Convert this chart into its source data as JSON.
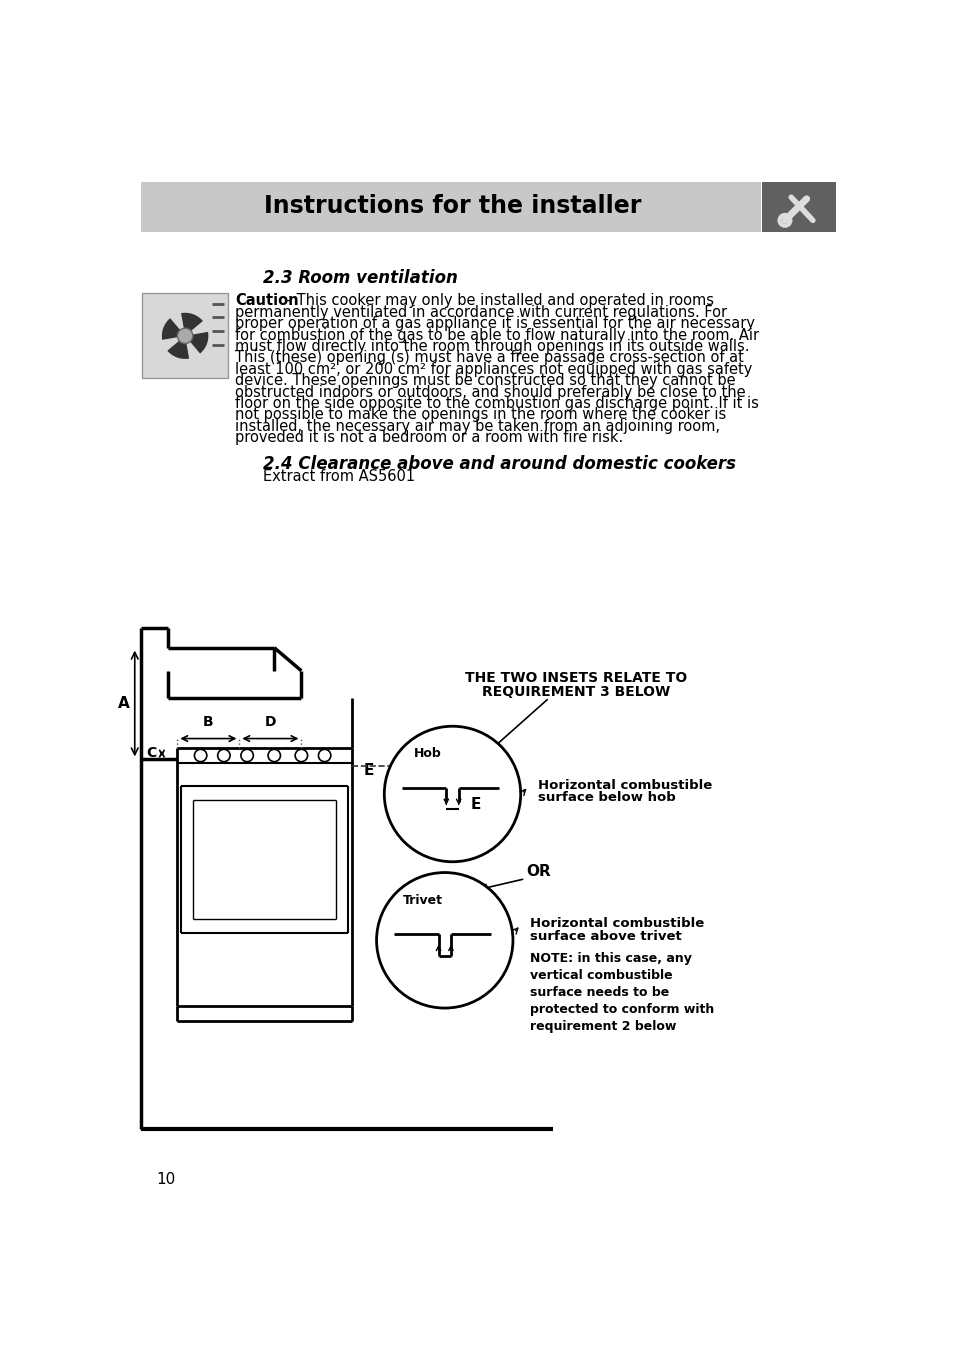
{
  "page_bg": "#ffffff",
  "header_bg": "#c8c8c8",
  "header_text": "Instructions for the installer",
  "header_text_color": "#000000",
  "icon_bg": "#606060",
  "section_title_1": "2.3 Room ventilation",
  "caution_bold": "Caution",
  "caution_text_line1": " – This cooker may only be installed and operated in rooms",
  "caution_lines": [
    "permanently ventilated in accordance with current regulations. For",
    "proper operation of a gas appliance it is essential for the air necessary",
    "for combustion of the gas to be able to flow naturally into the room. Air",
    "must flow directly into the room through openings in its outside walls.",
    "This (these) opening (s) must have a free passage cross-section of at",
    "least 100 cm², or 200 cm² for appliances not equipped with gas safety",
    "device. These openings must be constructed so that they cannot be",
    "obstructed indoors or outdoors, and should preferably be close to the",
    "floor on the side opposite to the combustion gas discharge point. If it is",
    "not possible to make the openings in the room where the cooker is",
    "installed, the necessary air may be taken from an adjoining room,",
    "proveded it is not a bedroom or a room with fire risk."
  ],
  "section_title_2": "2.4 Clearance above and around domestic cookers",
  "extract_text": "Extract from AS5601",
  "diagram_label_1a": "THE TWO INSETS RELATE TO",
  "diagram_label_1b": "REQUIREMENT 3 BELOW",
  "diagram_label_hob": "Hob",
  "diagram_label_E": "E",
  "diagram_label_A": "A",
  "diagram_label_B": "B",
  "diagram_label_C": "C",
  "diagram_label_D": "D",
  "diagram_label_OR": "OR",
  "diagram_label_trivet": "Trivet",
  "label_horiz_comb_1a": "Horizontal combustible",
  "label_horiz_comb_1b": "surface below hob",
  "label_horiz_comb_2a": "Horizontal combustible",
  "label_horiz_comb_2b": "surface above trivet",
  "label_note": "NOTE: in this case, any\nvertical combustible\nsurface needs to be\nprotected to conform with\nrequirement 2 below",
  "page_number": "10"
}
